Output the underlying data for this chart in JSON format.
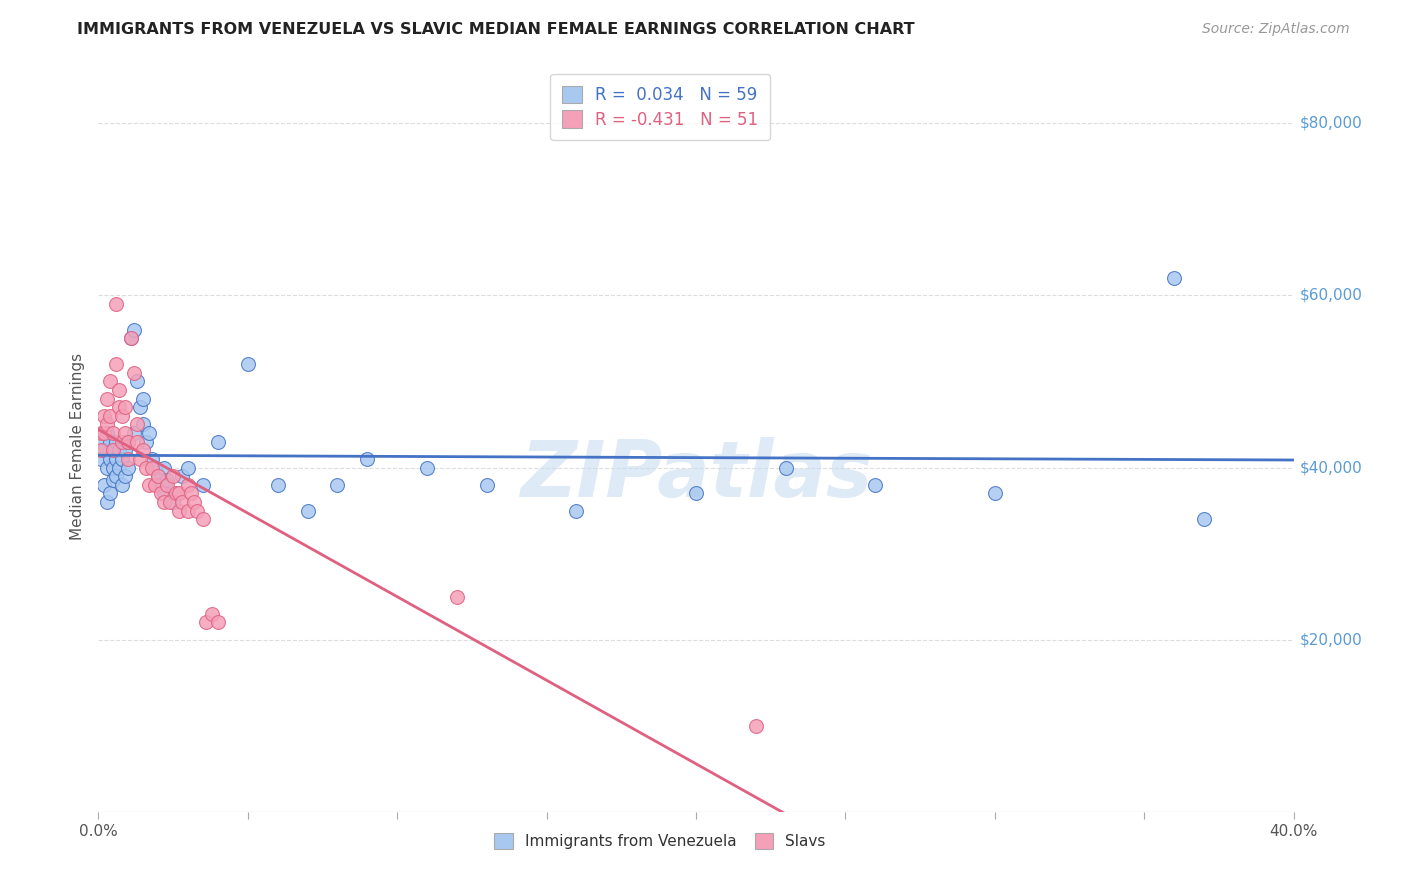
{
  "title": "IMMIGRANTS FROM VENEZUELA VS SLAVIC MEDIAN FEMALE EARNINGS CORRELATION CHART",
  "source": "Source: ZipAtlas.com",
  "ylabel": "Median Female Earnings",
  "right_yticks": [
    0,
    20000,
    40000,
    60000,
    80000
  ],
  "right_yticklabels": [
    "",
    "$20,000",
    "$40,000",
    "$60,000",
    "$80,000"
  ],
  "legend_label1": "R =  0.034   N = 59",
  "legend_label2": "R = -0.431   N = 51",
  "legend_item1": "Immigrants from Venezuela",
  "legend_item2": "Slavs",
  "color_blue": "#A8C8F0",
  "color_pink": "#F4A0B8",
  "color_blue_dark": "#4472C4",
  "color_pink_dark": "#E06080",
  "watermark": "ZIPatlas",
  "xlim": [
    0,
    0.4
  ],
  "ylim": [
    0,
    85000
  ],
  "blue_x": [
    0.001,
    0.001,
    0.002,
    0.002,
    0.003,
    0.003,
    0.003,
    0.004,
    0.004,
    0.004,
    0.005,
    0.005,
    0.005,
    0.006,
    0.006,
    0.006,
    0.007,
    0.007,
    0.008,
    0.008,
    0.009,
    0.009,
    0.01,
    0.01,
    0.011,
    0.012,
    0.012,
    0.013,
    0.014,
    0.015,
    0.015,
    0.016,
    0.017,
    0.018,
    0.019,
    0.02,
    0.021,
    0.022,
    0.022,
    0.023,
    0.025,
    0.028,
    0.03,
    0.035,
    0.04,
    0.05,
    0.06,
    0.07,
    0.08,
    0.09,
    0.11,
    0.13,
    0.16,
    0.2,
    0.23,
    0.26,
    0.3,
    0.36,
    0.37
  ],
  "blue_y": [
    41000,
    43000,
    38000,
    42000,
    36000,
    40000,
    44000,
    37000,
    41000,
    43000,
    38500,
    40000,
    42000,
    39000,
    41000,
    43000,
    40000,
    42000,
    38000,
    41000,
    39000,
    42000,
    40000,
    43000,
    55000,
    56000,
    44000,
    50000,
    47000,
    45000,
    48000,
    43000,
    44000,
    41000,
    40000,
    39000,
    38000,
    37000,
    40000,
    38500,
    36000,
    39000,
    40000,
    38000,
    43000,
    52000,
    38000,
    35000,
    38000,
    41000,
    40000,
    38000,
    35000,
    37000,
    40000,
    38000,
    37000,
    62000,
    34000
  ],
  "pink_x": [
    0.001,
    0.001,
    0.002,
    0.002,
    0.003,
    0.003,
    0.004,
    0.004,
    0.005,
    0.005,
    0.006,
    0.006,
    0.007,
    0.007,
    0.008,
    0.008,
    0.009,
    0.009,
    0.01,
    0.01,
    0.011,
    0.012,
    0.013,
    0.013,
    0.014,
    0.015,
    0.016,
    0.017,
    0.018,
    0.019,
    0.02,
    0.021,
    0.022,
    0.023,
    0.024,
    0.025,
    0.026,
    0.027,
    0.027,
    0.028,
    0.03,
    0.03,
    0.031,
    0.032,
    0.033,
    0.035,
    0.036,
    0.038,
    0.04,
    0.12,
    0.22
  ],
  "pink_y": [
    44000,
    42000,
    46000,
    44000,
    48000,
    45000,
    50000,
    46000,
    44000,
    42000,
    59000,
    52000,
    49000,
    47000,
    46000,
    43000,
    47000,
    44000,
    43000,
    41000,
    55000,
    51000,
    45000,
    43000,
    41000,
    42000,
    40000,
    38000,
    40000,
    38000,
    39000,
    37000,
    36000,
    38000,
    36000,
    39000,
    37000,
    35000,
    37000,
    36000,
    38000,
    35000,
    37000,
    36000,
    35000,
    34000,
    22000,
    23000,
    22000,
    25000,
    10000
  ]
}
